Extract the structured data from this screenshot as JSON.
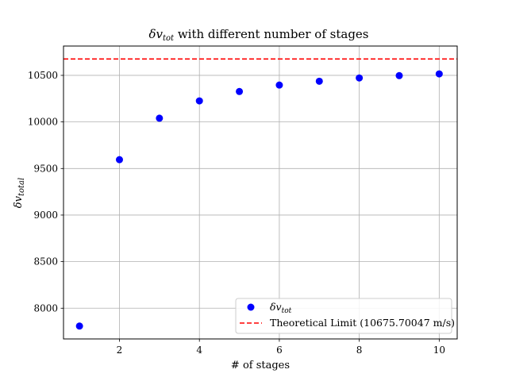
{
  "chart_data": {
    "type": "scatter",
    "title_main": "δv",
    "title_sub": "tot",
    "title_rest": " with different number of stages",
    "xlabel": "# of stages",
    "ylabel_main": "δv",
    "ylabel_sub": "total",
    "xlim": [
      0.6,
      10.45
    ],
    "ylim": [
      7670,
      10815
    ],
    "xticks": [
      2,
      4,
      6,
      8,
      10
    ],
    "yticks": [
      8000,
      8500,
      9000,
      9500,
      10000,
      10500
    ],
    "grid": true,
    "legend_position": "lower right",
    "series": [
      {
        "name_main": "δv",
        "name_sub": "tot",
        "color": "#0000ff",
        "x": [
          1,
          2,
          3,
          4,
          5,
          6,
          7,
          8,
          9,
          10
        ],
        "y": [
          7808,
          9595,
          10040,
          10226,
          10327,
          10396,
          10437,
          10472,
          10497,
          10516
        ]
      }
    ],
    "reference_line": {
      "label": "Theoretical Limit (10675.70047 m/s)",
      "y": 10675.70047,
      "color": "#ff0000",
      "style": "dashed"
    }
  }
}
